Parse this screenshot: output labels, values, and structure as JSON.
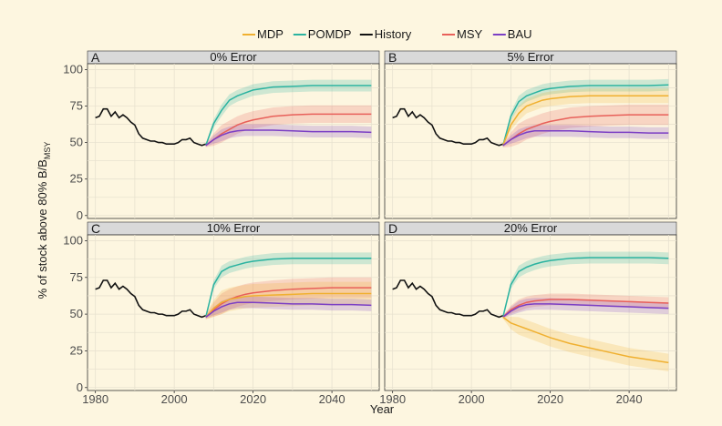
{
  "chart_data": {
    "type": "line",
    "xlabel": "Year",
    "ylabel": "% of stock above 80% B/B",
    "ylabel_subscript": "MSY",
    "xlim": [
      1978,
      2052
    ],
    "ylim": [
      -2,
      104
    ],
    "x_ticks": [
      1980,
      2000,
      2020,
      2040
    ],
    "y_ticks": [
      0,
      25,
      50,
      75,
      100
    ],
    "legend": {
      "placement": "top",
      "entries": [
        {
          "name": "MDP",
          "color": "#f0b030"
        },
        {
          "name": "POMDP",
          "color": "#2bb3a0"
        },
        {
          "name": "History",
          "color": "#111111"
        },
        {
          "name": "MSY",
          "color": "#e8605a"
        },
        {
          "name": "BAU",
          "color": "#7b3fc4"
        }
      ]
    },
    "history": {
      "x": [
        1980,
        1981,
        1982,
        1983,
        1984,
        1985,
        1986,
        1987,
        1988,
        1989,
        1990,
        1991,
        1992,
        1993,
        1994,
        1995,
        1996,
        1997,
        1998,
        1999,
        2000,
        2001,
        2002,
        2003,
        2004,
        2005,
        2006,
        2007,
        2008
      ],
      "y": [
        67,
        68,
        73,
        73,
        68,
        71,
        67,
        69,
        67,
        64,
        62,
        56,
        53,
        52,
        51,
        51,
        50,
        50,
        49,
        49,
        49,
        50,
        52,
        52,
        53,
        50,
        49,
        48,
        49
      ]
    },
    "panels": [
      {
        "letter": "A",
        "title": "0% Error",
        "series": [
          {
            "name": "POMDP",
            "x": [
              2008,
              2010,
              2012,
              2014,
              2016,
              2018,
              2020,
              2025,
              2030,
              2035,
              2040,
              2045,
              2050
            ],
            "y": [
              48,
              63,
              72,
              79,
              82,
              84,
              86,
              88,
              88.5,
              89,
              89,
              89,
              89
            ],
            "band": 4
          },
          {
            "name": "MSY",
            "x": [
              2008,
              2010,
              2012,
              2014,
              2016,
              2018,
              2020,
              2025,
              2030,
              2035,
              2040,
              2045,
              2050
            ],
            "y": [
              48,
              52,
              56,
              59,
              62,
              64,
              65.5,
              68,
              69,
              69.5,
              69.5,
              69.5,
              69.5
            ],
            "band": 6
          },
          {
            "name": "BAU",
            "x": [
              2008,
              2010,
              2012,
              2014,
              2016,
              2018,
              2020,
              2025,
              2030,
              2035,
              2040,
              2045,
              2050
            ],
            "y": [
              48,
              52,
              55,
              57,
              58,
              58.5,
              58.5,
              58.5,
              58,
              57.5,
              57.5,
              57.5,
              57
            ],
            "band": 4
          }
        ]
      },
      {
        "letter": "B",
        "title": "5% Error",
        "series": [
          {
            "name": "POMDP",
            "x": [
              2008,
              2010,
              2012,
              2014,
              2016,
              2018,
              2020,
              2025,
              2030,
              2035,
              2040,
              2045,
              2050
            ],
            "y": [
              48,
              68,
              78,
              82,
              84,
              86,
              87,
              88.5,
              89,
              89,
              89,
              89,
              89.5
            ],
            "band": 4
          },
          {
            "name": "MDP",
            "x": [
              2008,
              2010,
              2012,
              2014,
              2016,
              2018,
              2020,
              2025,
              2030,
              2035,
              2040,
              2045,
              2050
            ],
            "y": [
              48,
              62,
              70,
              75,
              77,
              79,
              80,
              81.5,
              82,
              82,
              82,
              82,
              82
            ],
            "band": 5
          },
          {
            "name": "MSY",
            "x": [
              2008,
              2010,
              2012,
              2014,
              2016,
              2018,
              2020,
              2025,
              2030,
              2035,
              2040,
              2045,
              2050
            ],
            "y": [
              48,
              52,
              56,
              59,
              61,
              63,
              64.5,
              67,
              68,
              68.5,
              69,
              69,
              69
            ],
            "band": 7
          },
          {
            "name": "BAU",
            "x": [
              2008,
              2010,
              2012,
              2014,
              2016,
              2018,
              2020,
              2025,
              2030,
              2035,
              2040,
              2045,
              2050
            ],
            "y": [
              48,
              52,
              55,
              57,
              58,
              58,
              58,
              58,
              57.5,
              57,
              57,
              56.5,
              56.5
            ],
            "band": 4
          }
        ]
      },
      {
        "letter": "C",
        "title": "10% Error",
        "series": [
          {
            "name": "POMDP",
            "x": [
              2008,
              2010,
              2012,
              2014,
              2016,
              2018,
              2020,
              2025,
              2030,
              2035,
              2040,
              2045,
              2050
            ],
            "y": [
              48,
              70,
              79,
              82,
              83.5,
              85,
              86,
              87.5,
              88,
              88,
              88,
              88,
              88
            ],
            "band": 4
          },
          {
            "name": "MSY",
            "x": [
              2008,
              2010,
              2012,
              2014,
              2016,
              2018,
              2020,
              2025,
              2030,
              2035,
              2040,
              2045,
              2050
            ],
            "y": [
              48,
              53,
              57,
              60,
              62,
              63.5,
              64.5,
              66,
              67,
              67.5,
              68,
              68,
              68
            ],
            "band": 7
          },
          {
            "name": "MDP",
            "x": [
              2008,
              2010,
              2012,
              2014,
              2016,
              2018,
              2020,
              2025,
              2030,
              2035,
              2040,
              2045,
              2050
            ],
            "y": [
              48,
              54,
              58,
              60,
              61,
              62,
              62.5,
              63,
              63.5,
              64,
              64,
              64,
              64
            ],
            "band": 8
          },
          {
            "name": "BAU",
            "x": [
              2008,
              2010,
              2012,
              2014,
              2016,
              2018,
              2020,
              2025,
              2030,
              2035,
              2040,
              2045,
              2050
            ],
            "y": [
              48,
              52,
              55,
              57,
              58,
              58,
              58,
              57.5,
              57,
              57,
              56.5,
              56.5,
              56
            ],
            "band": 4
          }
        ]
      },
      {
        "letter": "D",
        "title": "20% Error",
        "series": [
          {
            "name": "POMDP",
            "x": [
              2008,
              2010,
              2012,
              2014,
              2016,
              2018,
              2020,
              2025,
              2030,
              2035,
              2040,
              2045,
              2050
            ],
            "y": [
              48,
              70,
              79,
              82,
              84,
              85.5,
              86.5,
              88,
              88.5,
              88.5,
              88.5,
              88.5,
              88
            ],
            "band": 4
          },
          {
            "name": "MSY",
            "x": [
              2008,
              2010,
              2012,
              2014,
              2016,
              2018,
              2020,
              2025,
              2030,
              2035,
              2040,
              2045,
              2050
            ],
            "y": [
              48,
              53,
              56,
              58,
              59,
              59.5,
              60,
              60,
              59.5,
              59,
              58.5,
              58,
              57.5
            ],
            "band": 4
          },
          {
            "name": "BAU",
            "x": [
              2008,
              2010,
              2012,
              2014,
              2016,
              2018,
              2020,
              2025,
              2030,
              2035,
              2040,
              2045,
              2050
            ],
            "y": [
              48,
              52,
              55,
              56.5,
              57,
              57,
              57,
              56.5,
              56,
              55.5,
              55,
              54.5,
              54
            ],
            "band": 4
          },
          {
            "name": "MDP",
            "x": [
              2008,
              2010,
              2012,
              2014,
              2016,
              2018,
              2020,
              2025,
              2030,
              2035,
              2040,
              2045,
              2050
            ],
            "y": [
              48,
              44,
              42,
              40,
              38,
              36,
              34,
              30,
              27,
              24,
              21,
              19,
              17
            ],
            "band": 6
          }
        ]
      }
    ]
  }
}
